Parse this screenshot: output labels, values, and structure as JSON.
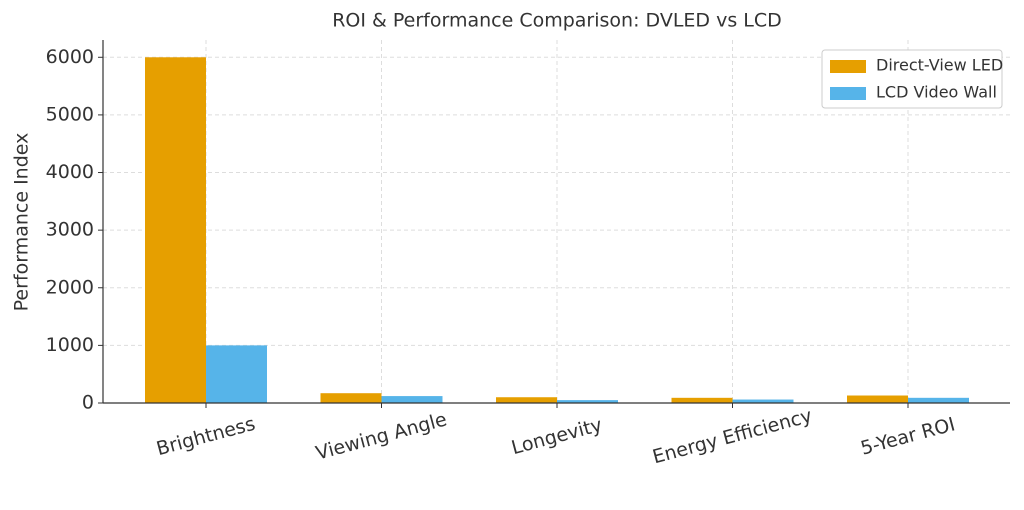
{
  "chart_data": {
    "type": "bar",
    "title": "ROI & Performance Comparison: DVLED vs LCD",
    "y_label": "Performance Index",
    "categories": [
      "Brightness",
      "Viewing Angle",
      "Longevity",
      "Energy Efficiency",
      "5-Year ROI"
    ],
    "series": [
      {
        "name": "Direct-View LED",
        "color": "#E69F00",
        "values": [
          6000,
          170,
          100,
          90,
          130
        ]
      },
      {
        "name": "LCD Video Wall",
        "color": "#56B4E9",
        "values": [
          1000,
          120,
          50,
          60,
          90
        ]
      }
    ],
    "ylim": [
      0,
      6300
    ],
    "yticks": [
      0,
      1000,
      2000,
      3000,
      4000,
      5000,
      6000
    ],
    "grid": true,
    "legend": "upper right"
  }
}
